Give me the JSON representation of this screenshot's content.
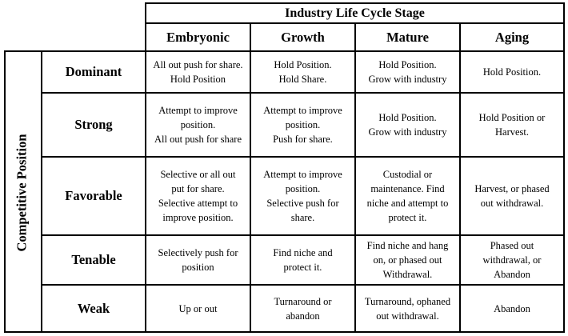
{
  "header": {
    "title": "Industry Life Cycle Stage",
    "stages": [
      "Embryonic",
      "Growth",
      "Mature",
      "Aging"
    ]
  },
  "side_label": "Competitive Position",
  "rows": [
    {
      "position": "Dominant",
      "cells": [
        "All out push for share.\nHold Position",
        "Hold Position.\nHold Share.",
        "Hold Position.\nGrow with industry",
        "Hold Position."
      ]
    },
    {
      "position": "Strong",
      "cells": [
        "Attempt to improve\nposition.\nAll out push for share",
        "Attempt to improve\nposition.\nPush for share.",
        "Hold Position.\nGrow with industry",
        "Hold Position or\nHarvest."
      ]
    },
    {
      "position": "Favorable",
      "cells": [
        "Selective or all out\nput for share.\nSelective attempt to\nimprove position.",
        "Attempt to improve\nposition.\nSelective push for\nshare.",
        "Custodial or\nmaintenance. Find\nniche and attempt to\nprotect it.",
        "Harvest, or phased\nout withdrawal."
      ]
    },
    {
      "position": "Tenable",
      "cells": [
        "Selectively push for\nposition",
        "Find niche and\nprotect it.",
        "Find niche and hang\non, or phased out\nWithdrawal.",
        "Phased out\nwithdrawal, or\nAbandon"
      ]
    },
    {
      "position": "Weak",
      "cells": [
        "Up or out",
        "Turnaround or\nabandon",
        "Turnaround, ophaned\nout withdrawal.",
        "Abandon"
      ]
    }
  ]
}
